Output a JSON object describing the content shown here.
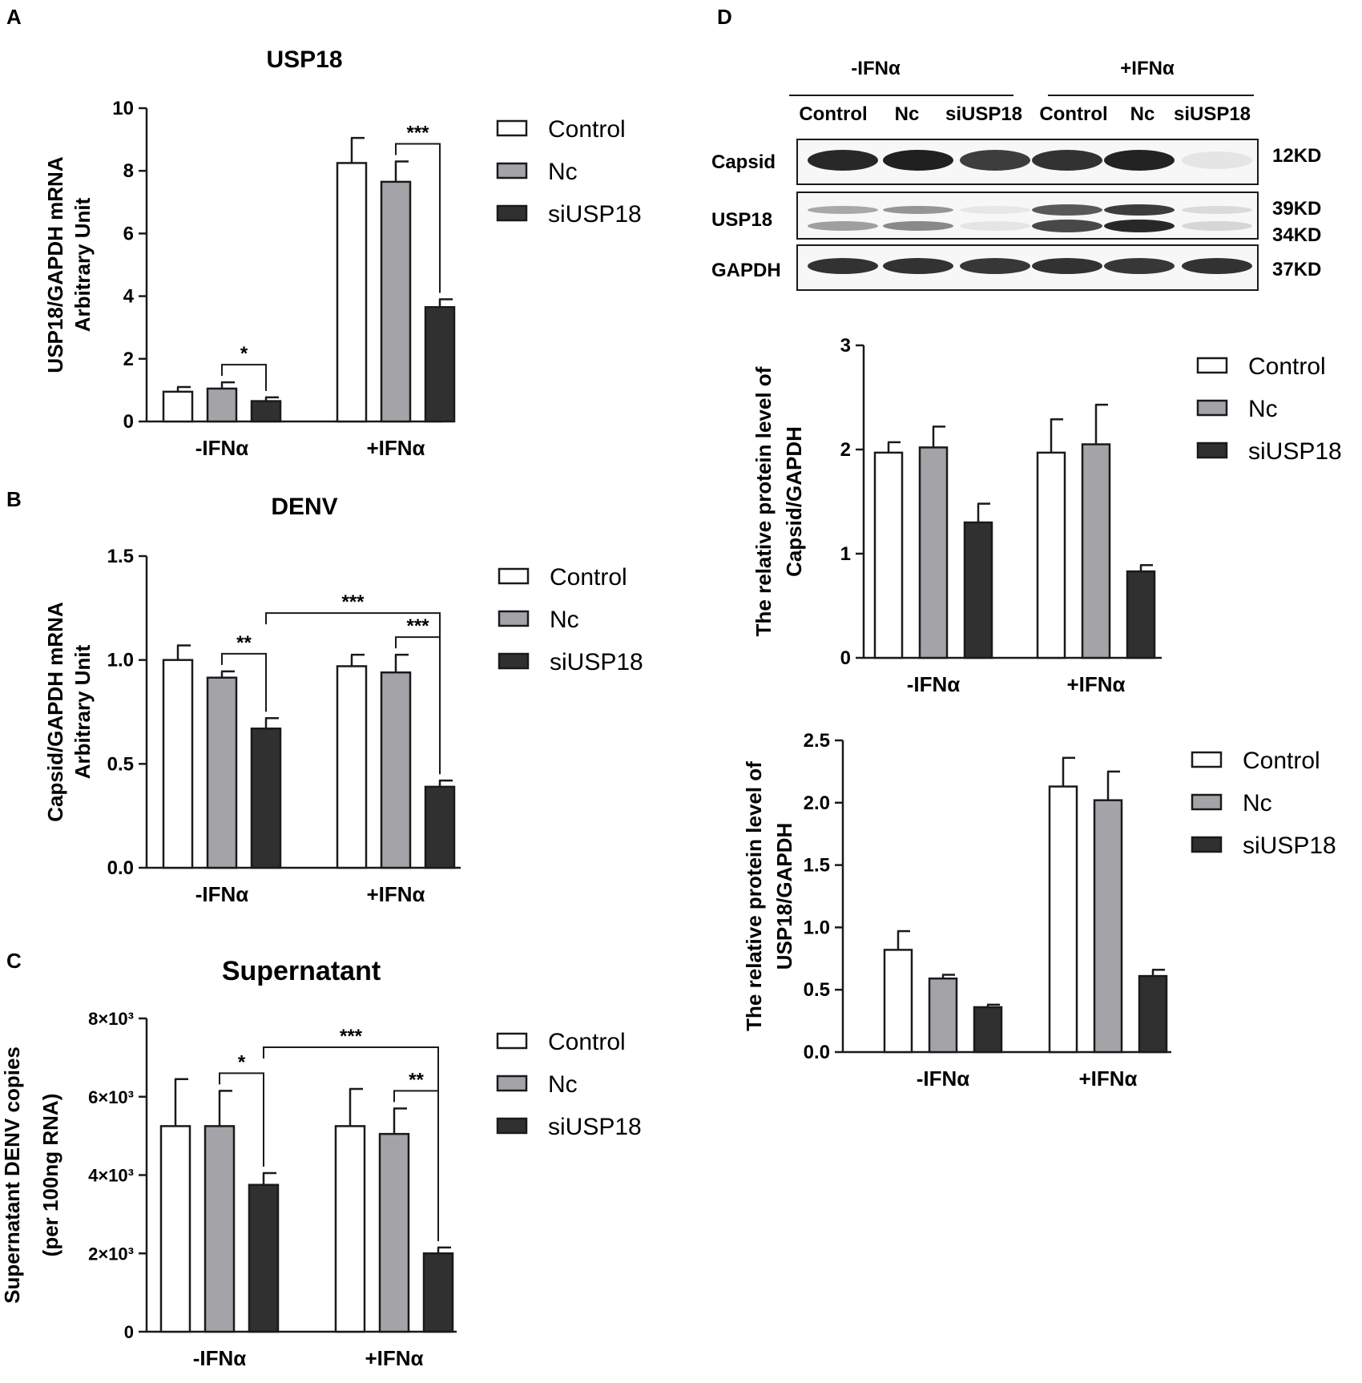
{
  "colors": {
    "control": "#ffffff",
    "nc": "#a4a4a8",
    "siusp18": "#303030",
    "axis": "#1a1a1a",
    "blot_band": "#1c1c1c"
  },
  "legend": [
    "Control",
    "Nc",
    "siUSP18"
  ],
  "chart_data": [
    {
      "panel": "A",
      "type": "bar",
      "title": "USP18",
      "ylabel": [
        "USP18/GAPDH mRNA",
        "Arbitrary Unit"
      ],
      "categories": [
        "-IFNα",
        "+IFNα"
      ],
      "ylim": [
        0,
        10
      ],
      "yticks": [
        "0",
        "2",
        "4",
        "6",
        "8",
        "10"
      ],
      "series": [
        {
          "name": "Control",
          "values": [
            0.95,
            8.25
          ],
          "errors": [
            0.15,
            0.8
          ]
        },
        {
          "name": "Nc",
          "values": [
            1.05,
            7.65
          ],
          "errors": [
            0.2,
            0.65
          ]
        },
        {
          "name": "siUSP18",
          "values": [
            0.65,
            3.65
          ],
          "errors": [
            0.12,
            0.25
          ]
        }
      ],
      "significance": [
        {
          "from": [
            0,
            1
          ],
          "to": [
            0,
            2
          ],
          "label": "*"
        },
        {
          "from": [
            1,
            1
          ],
          "to": [
            1,
            2
          ],
          "label": "***"
        }
      ],
      "legend_position": "right"
    },
    {
      "panel": "B",
      "type": "bar",
      "title": "DENV",
      "ylabel": [
        "Capsid/GAPDH mRNA",
        "Arbitrary Unit"
      ],
      "categories": [
        "-IFNα",
        "+IFNα"
      ],
      "ylim": [
        0,
        1.5
      ],
      "yticks": [
        "0.0",
        "0.5",
        "1.0",
        "1.5"
      ],
      "series": [
        {
          "name": "Control",
          "values": [
            1.0,
            0.97
          ],
          "errors": [
            0.07,
            0.055
          ]
        },
        {
          "name": "Nc",
          "values": [
            0.915,
            0.94
          ],
          "errors": [
            0.03,
            0.085
          ]
        },
        {
          "name": "siUSP18",
          "values": [
            0.67,
            0.39
          ],
          "errors": [
            0.05,
            0.03
          ]
        }
      ],
      "significance": [
        {
          "from": [
            0,
            1
          ],
          "to": [
            0,
            2
          ],
          "label": "**"
        },
        {
          "from": [
            0,
            2
          ],
          "to": [
            1,
            2
          ],
          "label": "***"
        },
        {
          "from": [
            1,
            1
          ],
          "to": [
            1,
            2
          ],
          "label": "***"
        }
      ],
      "legend_position": "right"
    },
    {
      "panel": "C",
      "type": "bar",
      "title": "Supernatant",
      "ylabel": [
        "Supernatant DENV copies",
        "(per 100ng RNA)"
      ],
      "categories": [
        "-IFNα",
        "+IFNα"
      ],
      "ylim": [
        0,
        8000
      ],
      "yticks": [
        "0",
        "2×10³",
        "4×10³",
        "6×10³",
        "8×10³"
      ],
      "series": [
        {
          "name": "Control",
          "values": [
            5250,
            5250
          ],
          "errors": [
            1200,
            950
          ]
        },
        {
          "name": "Nc",
          "values": [
            5250,
            5050
          ],
          "errors": [
            900,
            650
          ]
        },
        {
          "name": "siUSP18",
          "values": [
            3750,
            2000
          ],
          "errors": [
            300,
            150
          ]
        }
      ],
      "significance": [
        {
          "from": [
            0,
            1
          ],
          "to": [
            0,
            2
          ],
          "label": "*"
        },
        {
          "from": [
            0,
            2
          ],
          "to": [
            1,
            2
          ],
          "label": "***"
        },
        {
          "from": [
            1,
            1
          ],
          "to": [
            1,
            2
          ],
          "label": "**"
        }
      ],
      "legend_position": "right"
    },
    {
      "panel": "D",
      "type": "bar",
      "title": "",
      "ylabel": [
        "The relative protein level of",
        "Capsid/GAPDH"
      ],
      "categories": [
        "-IFNα",
        "+IFNα"
      ],
      "ylim": [
        0,
        3
      ],
      "yticks": [
        "0",
        "1",
        "2",
        "3"
      ],
      "series": [
        {
          "name": "Control",
          "values": [
            1.97,
            1.97
          ],
          "errors": [
            0.1,
            0.32
          ]
        },
        {
          "name": "Nc",
          "values": [
            2.02,
            2.05
          ],
          "errors": [
            0.2,
            0.38
          ]
        },
        {
          "name": "siUSP18",
          "values": [
            1.3,
            0.83
          ],
          "errors": [
            0.18,
            0.06
          ]
        }
      ],
      "significance": [],
      "legend_position": "right"
    },
    {
      "panel": "D",
      "type": "bar",
      "title": "",
      "ylabel": [
        "The relative protein level of",
        "USP18/GAPDH"
      ],
      "categories": [
        "-IFNα",
        "+IFNα"
      ],
      "ylim": [
        0,
        2.5
      ],
      "yticks": [
        "0.0",
        "0.5",
        "1.0",
        "1.5",
        "2.0",
        "2.5"
      ],
      "series": [
        {
          "name": "Control",
          "values": [
            0.82,
            2.13
          ],
          "errors": [
            0.15,
            0.23
          ]
        },
        {
          "name": "Nc",
          "values": [
            0.59,
            2.02
          ],
          "errors": [
            0.03,
            0.23
          ]
        },
        {
          "name": "siUSP18",
          "values": [
            0.36,
            0.61
          ],
          "errors": [
            0.02,
            0.05
          ]
        }
      ],
      "significance": [],
      "legend_position": "right"
    }
  ],
  "panel_letters": [
    "A",
    "B",
    "C",
    "D"
  ],
  "blot": {
    "groups": [
      "-IFNα",
      "+IFNα"
    ],
    "lanes": [
      "Control",
      "Nc",
      "siUSP18",
      "Control",
      "Nc",
      "siUSP18"
    ],
    "rows": [
      {
        "label": "Capsid",
        "sizes": [
          "12KD"
        ],
        "intensity": [
          0.95,
          0.98,
          0.85,
          0.9,
          0.97,
          0.08
        ]
      },
      {
        "label": "USP18",
        "sizes": [
          "39KD",
          "34KD"
        ],
        "intensity": [
          0.4,
          0.5,
          0.08,
          0.8,
          0.95,
          0.15
        ]
      },
      {
        "label": "GAPDH",
        "sizes": [
          "37KD"
        ],
        "intensity": [
          0.9,
          0.9,
          0.88,
          0.9,
          0.88,
          0.9
        ]
      }
    ]
  }
}
